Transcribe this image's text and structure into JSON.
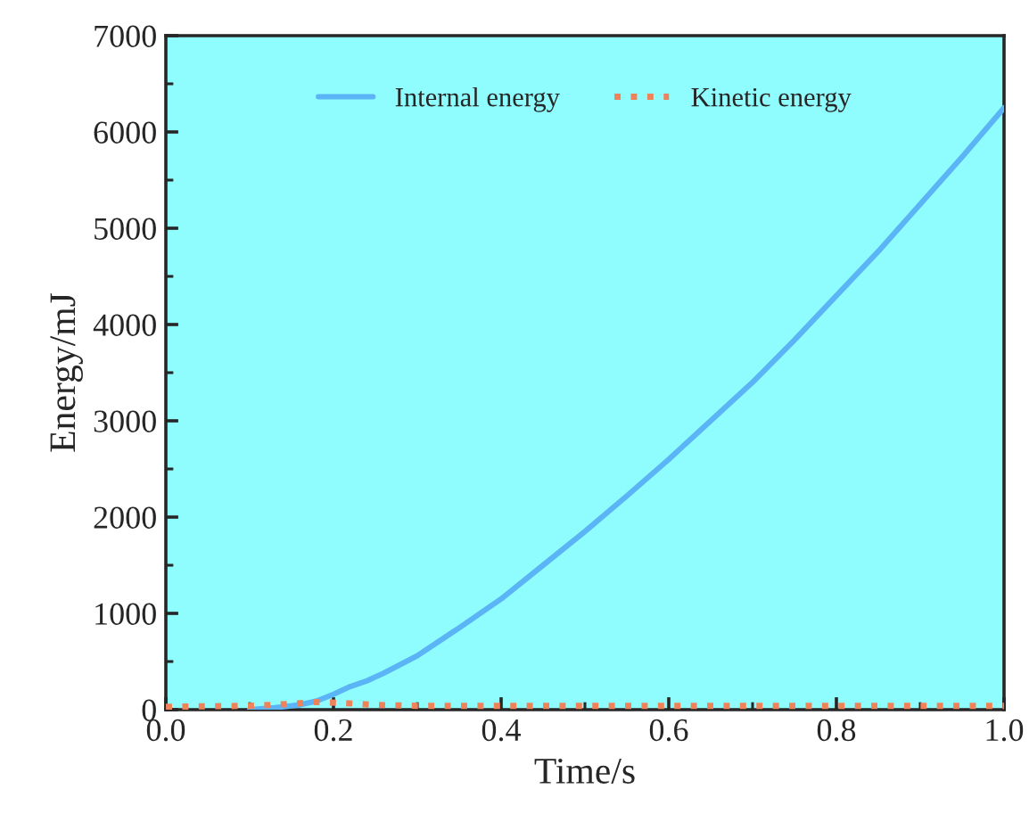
{
  "chart_data": {
    "type": "line",
    "xlabel": "Time/s",
    "ylabel": "Energy/mJ",
    "xlim": [
      0,
      1
    ],
    "ylim": [
      0,
      7000
    ],
    "xticks": [
      {
        "value": 0,
        "label": "0.0"
      },
      {
        "value": 0.2,
        "label": "0.2"
      },
      {
        "value": 0.4,
        "label": "0.4"
      },
      {
        "value": 0.6,
        "label": "0.6"
      },
      {
        "value": 0.8,
        "label": "0.8"
      },
      {
        "value": 1,
        "label": "1.0"
      }
    ],
    "yticks": [
      0,
      1000,
      2000,
      3000,
      4000,
      5000,
      6000,
      7000
    ],
    "legend": "top",
    "grid": false,
    "series": [
      {
        "name": "Internal energy",
        "color": "#5ab4f5",
        "line_style": "solid",
        "x": [
          0.1,
          0.13,
          0.16,
          0.18,
          0.2,
          0.22,
          0.24,
          0.26,
          0.3,
          0.35,
          0.4,
          0.45,
          0.5,
          0.55,
          0.6,
          0.65,
          0.7,
          0.75,
          0.8,
          0.85,
          0.9,
          0.95,
          1.0
        ],
        "values": [
          0,
          20,
          50,
          90,
          160,
          240,
          300,
          380,
          560,
          850,
          1150,
          1500,
          1850,
          2220,
          2600,
          3000,
          3400,
          3840,
          4300,
          4760,
          5250,
          5740,
          6250
        ]
      },
      {
        "name": "Kinetic energy",
        "color": "#f0825a",
        "line_style": "dotted",
        "x": [
          0,
          0.1,
          0.15,
          0.18,
          0.21,
          0.25,
          0.3,
          0.4,
          0.6,
          0.8,
          1.0
        ],
        "values": [
          30,
          40,
          60,
          80,
          70,
          50,
          40,
          40,
          40,
          40,
          40
        ]
      }
    ]
  }
}
